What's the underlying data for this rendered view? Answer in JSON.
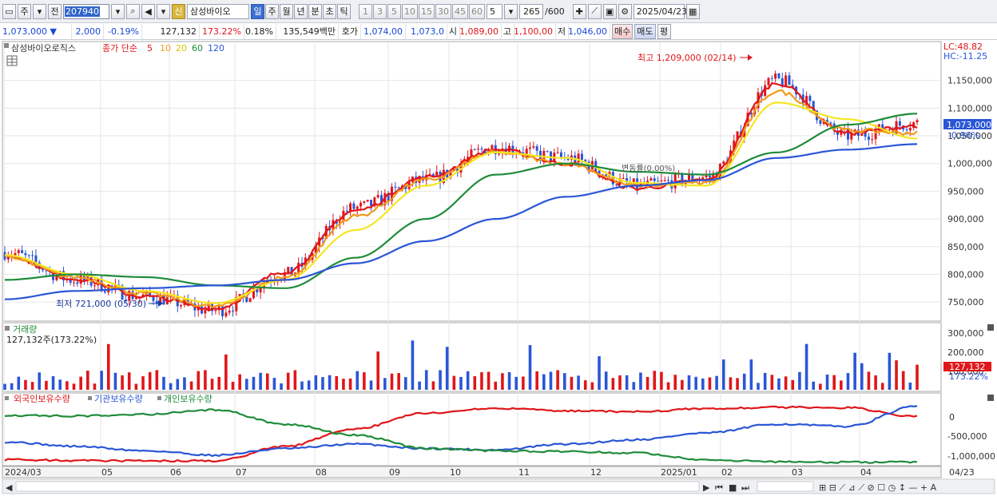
{
  "toolbar": {
    "type_label": "주",
    "prev_label": "전",
    "code_value": "207940",
    "stock_name": "삼성바이오",
    "new_badge": "신",
    "periods": [
      "일",
      "주",
      "월",
      "년",
      "분",
      "초",
      "틱"
    ],
    "active_period": "일",
    "intervals": [
      "1",
      "3",
      "5",
      "10",
      "15",
      "30",
      "45",
      "60"
    ],
    "interval_value": "5",
    "count_value": "265",
    "count_total": "/600",
    "date_value": "2025/04/23"
  },
  "quote": {
    "price": "1,073,000",
    "change": "2,000",
    "change_pct": "-0.19%",
    "volume": "127,132",
    "volume_ratio": "173.22%",
    "turnover_pct": "0.18%",
    "amount": "135,549백만",
    "bid_label": "호가",
    "bid1": "1,074,00",
    "bid2": "1,073,0",
    "open_label": "시",
    "open": "1,089,00",
    "high_label": "고",
    "high": "1,100,00",
    "low_label": "저",
    "low": "1,046,00",
    "buy_label": "매수",
    "sell_label": "매도",
    "eval_label": "평"
  },
  "legend": {
    "stock": "삼성바이오로직스",
    "ma_label": "종가 단순",
    "ma_periods": [
      "5",
      "10",
      "20",
      "60",
      "120"
    ],
    "ma_colors": [
      "#e0161a",
      "#f09a1a",
      "#f5e620",
      "#1f8c3a",
      "#2a56d6"
    ]
  },
  "price_panel": {
    "lc": "LC:48.82",
    "hc": "HC:-11.25",
    "high_note": "최고 1,209,000 (02/14)",
    "low_note": "최저 721,000 (05/30)",
    "current_tag": "1,073,000",
    "current_pct": "-0.96%",
    "overlap_text": "변동률(0.00%)",
    "axis": [
      "1,150,000",
      "1,100,000",
      "1,050,000",
      "1,000,000",
      "950,000",
      "900,000",
      "850,000",
      "800,000",
      "750,000"
    ]
  },
  "volume_panel": {
    "title": "거래량",
    "value": "127,132주(173.22%)",
    "axis": [
      "300,000",
      "200,000",
      "100,000"
    ],
    "tag": "127,132",
    "tag_pct": "173.22%"
  },
  "holding_panel": {
    "labels": [
      "외국인보유수량",
      "기관보유수량",
      "개인보유수량"
    ],
    "colors": [
      "#e0161a",
      "#2a56d6",
      "#1f8c3a"
    ],
    "axis": [
      "0",
      "-500,000",
      "-1,000,000"
    ]
  },
  "date_axis": [
    "2024/03",
    "05",
    "06",
    "07",
    "08",
    "09",
    "10",
    "11",
    "12",
    "2025/01",
    "02",
    "03",
    "04"
  ],
  "date_axis_right": "04/23",
  "chart_data": {
    "type": "candlestick",
    "title": "",
    "x": [
      "2024-03",
      "2024-04",
      "2024-05",
      "2024-06",
      "2024-07",
      "2024-08",
      "2024-09",
      "2024-10",
      "2024-11",
      "2024-12",
      "2025-01",
      "2025-02",
      "2025-03",
      "2025-04"
    ],
    "series": [
      {
        "name": "종가",
        "values": [
          840000,
          790000,
          760000,
          735000,
          800000,
          920000,
          970000,
          1030000,
          1010000,
          960000,
          975000,
          1150000,
          1050000,
          1073000
        ]
      },
      {
        "name": "5",
        "values": [
          835000,
          792000,
          760000,
          738000,
          805000,
          915000,
          975000,
          1025000,
          1000000,
          955000,
          970000,
          1145000,
          1055000,
          1068000
        ]
      },
      {
        "name": "10",
        "values": [
          830000,
          795000,
          765000,
          742000,
          795000,
          905000,
          970000,
          1020000,
          1000000,
          960000,
          965000,
          1130000,
          1060000,
          1055000
        ]
      },
      {
        "name": "20",
        "values": [
          835000,
          800000,
          770000,
          748000,
          790000,
          880000,
          960000,
          1020000,
          1010000,
          965000,
          960000,
          1110000,
          1080000,
          1045000
        ]
      },
      {
        "name": "60",
        "values": [
          790000,
          800000,
          795000,
          780000,
          775000,
          830000,
          900000,
          980000,
          1000000,
          985000,
          980000,
          1020000,
          1070000,
          1090000
        ]
      },
      {
        "name": "120",
        "values": [
          755000,
          770000,
          775000,
          780000,
          790000,
          820000,
          860000,
          900000,
          940000,
          960000,
          970000,
          1010000,
          1025000,
          1035000
        ]
      }
    ],
    "ylim": [
      720000,
      1210000
    ],
    "high": {
      "value": 1209000,
      "date": "02/14"
    },
    "low": {
      "value": 721000,
      "date": "05/30"
    },
    "volume": {
      "ylim": [
        0,
        320000
      ],
      "last": 127132
    },
    "holdings_ylim": [
      -1100000,
      250000
    ]
  }
}
